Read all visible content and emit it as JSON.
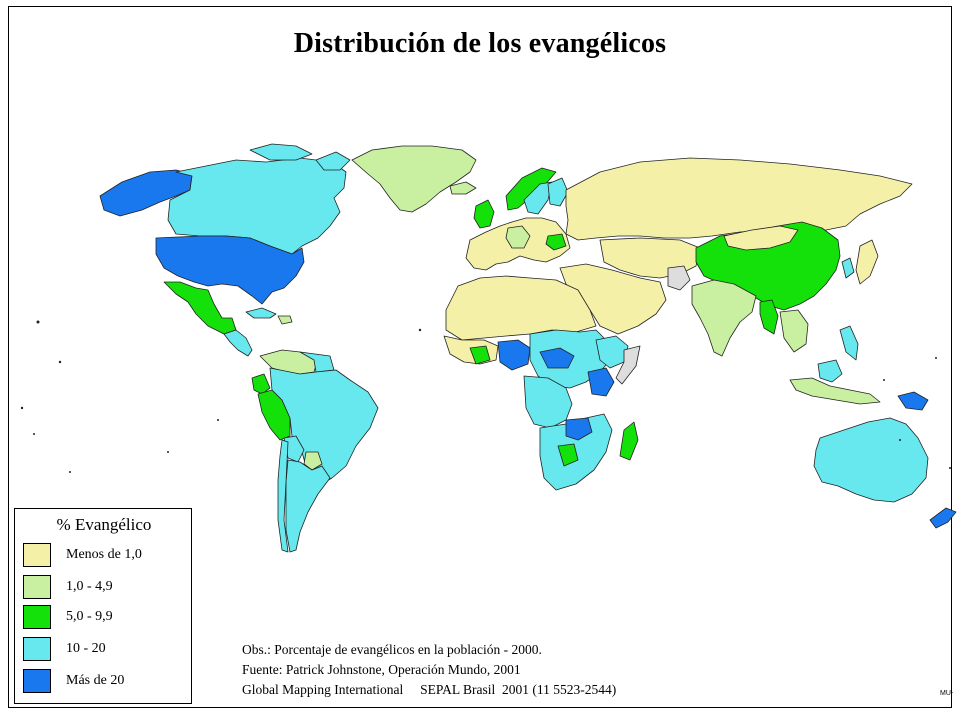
{
  "title": "Distribución de los evangélicos",
  "legend": {
    "title": "% Evangélico",
    "items": [
      {
        "label": "Menos de 1,0",
        "color": "#f5f0a8"
      },
      {
        "label": "1,0 - 4,9",
        "color": "#c9f0a0"
      },
      {
        "label": "5,0 - 9,9",
        "color": "#14e00a"
      },
      {
        "label": "10 - 20",
        "color": "#66e8ee"
      },
      {
        "label": "Más de 20",
        "color": "#1a78ee"
      }
    ]
  },
  "notes": [
    "Obs.: Porcentaje de evangélicos en la población - 2000.",
    "Fuente: Patrick Johnstone, Operación Mundo, 2001",
    "Global Mapping International     SEPAL Brasil  2001 (11 5523-2544)"
  ],
  "credit": "MU-"
}
